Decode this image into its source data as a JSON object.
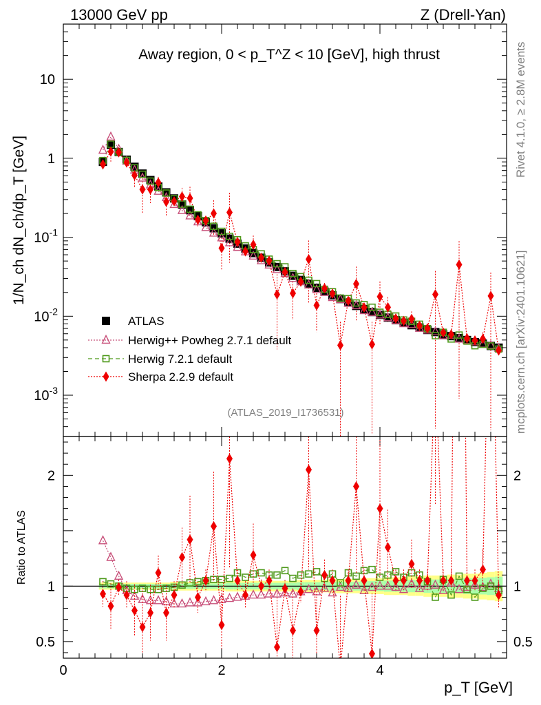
{
  "header": {
    "left": "13000 GeV pp",
    "right": "Z (Drell-Yan)"
  },
  "side_labels": {
    "rivet": "Rivet 4.1.0, ≥ 2.8M events",
    "mcplots": "mcplots.cern.ch [arXiv:2401.10621]"
  },
  "chart_data": {
    "type": "scatter",
    "title": "Away region, 0 < p_T^Z < 10 [GeV], high thrust",
    "analysis_tag": "(ATLAS_2019_I1736531)",
    "xlabel": "p_T [GeV]",
    "ylabel_top": "1/N_ch dN_ch/dp_T [GeV]",
    "ylabel_bottom": "Ratio to ATLAS",
    "xlim": [
      0,
      5.6
    ],
    "ylim_top": [
      0.0003,
      50
    ],
    "ylim_bottom": [
      0.35,
      2.35
    ],
    "y_scale_top": "log",
    "x_ticks": [
      "0",
      "2",
      "4"
    ],
    "y_ticks_top": [
      "10^-3",
      "10^-2",
      "10^-1",
      "1",
      "10"
    ],
    "y_ticks_bottom": [
      "0.5",
      "1",
      "2"
    ],
    "legend_position": "left-middle",
    "colors": {
      "atlas": "#000000",
      "herwig_powheg": "#c8507a",
      "herwig721": "#4f9a1c",
      "sherpa": "#ee0000",
      "band_inner": "#aaffaa",
      "band_outer": "#ffff88"
    },
    "x": [
      0.5,
      0.6,
      0.7,
      0.8,
      0.9,
      1.0,
      1.1,
      1.2,
      1.3,
      1.4,
      1.5,
      1.6,
      1.7,
      1.8,
      1.9,
      2.0,
      2.1,
      2.2,
      2.3,
      2.4,
      2.5,
      2.6,
      2.7,
      2.8,
      2.9,
      3.0,
      3.1,
      3.2,
      3.3,
      3.4,
      3.5,
      3.6,
      3.7,
      3.8,
      3.9,
      4.0,
      4.1,
      4.2,
      4.3,
      4.4,
      4.5,
      4.6,
      4.7,
      4.8,
      4.9,
      5.0,
      5.1,
      5.2,
      5.3,
      5.4,
      5.5
    ],
    "series": [
      {
        "name": "ATLAS",
        "marker": "filled-square",
        "values": [
          0.9,
          1.48,
          1.2,
          0.96,
          0.78,
          0.64,
          0.53,
          0.44,
          0.37,
          0.31,
          0.26,
          0.22,
          0.185,
          0.155,
          0.13,
          0.112,
          0.096,
          0.083,
          0.072,
          0.063,
          0.055,
          0.048,
          0.042,
          0.037,
          0.0325,
          0.0288,
          0.0257,
          0.0229,
          0.0205,
          0.0184,
          0.0165,
          0.0149,
          0.0135,
          0.0123,
          0.0113,
          0.0104,
          0.0096,
          0.0089,
          0.0083,
          0.0077,
          0.0072,
          0.0067,
          0.0063,
          0.0059,
          0.0056,
          0.0053,
          0.005,
          0.0047,
          0.0045,
          0.0042,
          0.004
        ]
      },
      {
        "name": "Herwig++ Powheg 2.7.1 default",
        "marker": "open-triangle",
        "line": "dotted",
        "ratio": [
          1.41,
          1.26,
          1.09,
          0.96,
          0.91,
          0.88,
          0.87,
          0.87,
          0.86,
          0.84,
          0.84,
          0.85,
          0.85,
          0.86,
          0.87,
          0.88,
          0.89,
          0.9,
          0.91,
          0.92,
          0.92,
          0.93,
          0.93,
          0.94,
          0.93,
          0.95,
          0.97,
          0.95,
          0.98,
          0.94,
          0.99,
          0.98,
          1.01,
          0.96,
          0.99,
          1.0,
          1.0,
          0.99,
          0.97,
          1.02,
          0.98,
          1.0,
          1.01,
          0.96,
          1.03,
          0.97,
          0.99,
          1.01,
          0.99,
          1.02,
          0.98
        ]
      },
      {
        "name": "Herwig 7.2.1 default",
        "marker": "open-square",
        "line": "dashed",
        "ratio": [
          1.04,
          1.02,
          1.0,
          0.98,
          0.97,
          0.98,
          0.97,
          0.97,
          0.98,
          0.99,
          1.01,
          1.03,
          1.04,
          1.05,
          1.06,
          1.06,
          1.07,
          1.12,
          1.08,
          1.11,
          1.12,
          1.1,
          1.1,
          1.14,
          1.07,
          1.1,
          1.11,
          1.13,
          1.07,
          1.11,
          1.03,
          1.12,
          1.09,
          1.14,
          1.15,
          1.08,
          1.1,
          1.13,
          1.08,
          1.12,
          1.1,
          1.04,
          0.9,
          1.06,
          0.92,
          1.09,
          0.97,
          0.9,
          0.98,
          1.0,
          0.96
        ]
      },
      {
        "name": "Sherpa 2.2.9 default",
        "marker": "filled-diamond",
        "line": "dotted",
        "ratio": [
          0.93,
          0.82,
          0.99,
          0.92,
          0.78,
          0.63,
          0.76,
          1.12,
          0.76,
          0.92,
          1.26,
          1.42,
          0.9,
          1.05,
          1.54,
          0.65,
          2.15,
          1.05,
          0.92,
          1.28,
          1.0,
          1.05,
          0.45,
          0.98,
          0.6,
          0.95,
          2.05,
          0.6,
          1.1,
          1.05,
          0.26,
          1.05,
          1.9,
          1.05,
          0.39,
          1.7,
          1.35,
          1.05,
          1.05,
          1.2,
          1.05,
          1.05,
          3.0,
          1.05,
          1.05,
          8.5,
          1.05,
          1.05,
          1.15,
          4.3,
          0.92
        ]
      }
    ],
    "atlas_band_rel_error": [
      0.02,
      0.02,
      0.02,
      0.02,
      0.02,
      0.02,
      0.02,
      0.02,
      0.02,
      0.025,
      0.025,
      0.025,
      0.025,
      0.025,
      0.025,
      0.025,
      0.03,
      0.03,
      0.03,
      0.03,
      0.03,
      0.03,
      0.03,
      0.03,
      0.03,
      0.035,
      0.035,
      0.035,
      0.035,
      0.04,
      0.04,
      0.04,
      0.04,
      0.045,
      0.045,
      0.045,
      0.05,
      0.05,
      0.05,
      0.055,
      0.055,
      0.06,
      0.06,
      0.06,
      0.065,
      0.065,
      0.07,
      0.07,
      0.075,
      0.08,
      0.085
    ]
  }
}
